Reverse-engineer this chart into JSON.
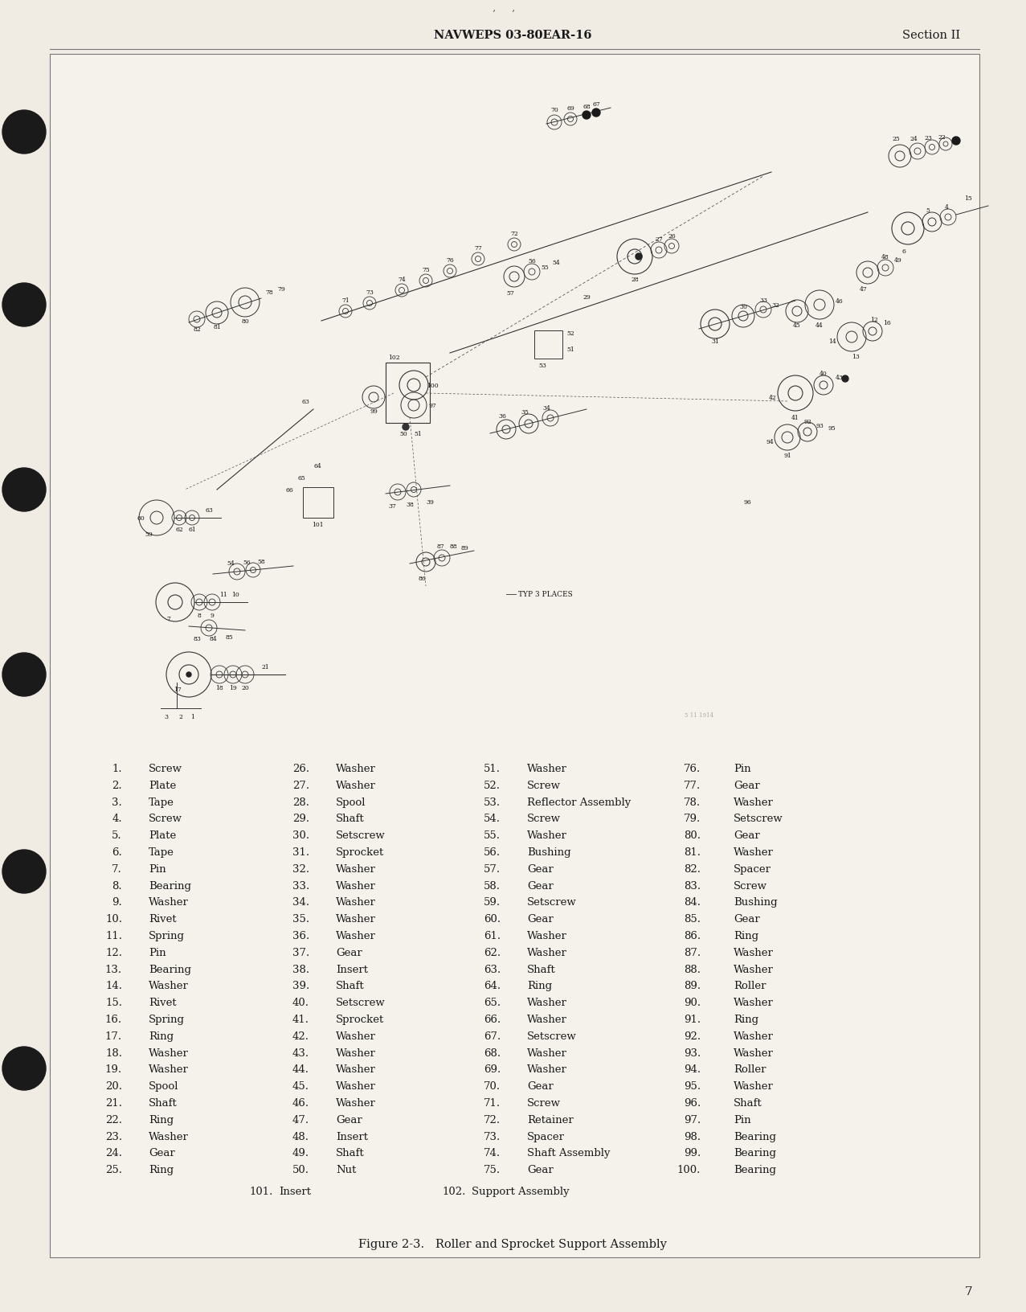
{
  "page_bg": "#f0ece4",
  "content_bg": "#f5f2ec",
  "header_left": "NAVWEPS 03-80EAR-16",
  "header_right": "Section II",
  "page_number": "7",
  "figure_caption": "Figure 2-3.   Roller and Sprocket Support Assembly",
  "parts_col1_nums": [
    "1.",
    "2.",
    "3.",
    "4.",
    "5.",
    "6.",
    "7.",
    "8.",
    "9.",
    "10.",
    "11.",
    "12.",
    "13.",
    "14.",
    "15.",
    "16.",
    "17.",
    "18.",
    "19.",
    "20.",
    "21.",
    "22.",
    "23.",
    "24.",
    "25."
  ],
  "parts_col1_names": [
    "Screw",
    "Plate",
    "Tape",
    "Screw",
    "Plate",
    "Tape",
    "Pin",
    "Bearing",
    "Washer",
    "Rivet",
    "Spring",
    "Pin",
    "Bearing",
    "Washer",
    "Rivet",
    "Spring",
    "Ring",
    "Washer",
    "Washer",
    "Spool",
    "Shaft",
    "Ring",
    "Washer",
    "Gear",
    "Ring"
  ],
  "parts_col2_nums": [
    "26.",
    "27.",
    "28.",
    "29.",
    "30.",
    "31.",
    "32.",
    "33.",
    "34.",
    "35.",
    "36.",
    "37.",
    "38.",
    "39.",
    "40.",
    "41.",
    "42.",
    "43.",
    "44.",
    "45.",
    "46.",
    "47.",
    "48.",
    "49.",
    "50."
  ],
  "parts_col2_names": [
    "Washer",
    "Washer",
    "Spool",
    "Shaft",
    "Setscrew",
    "Sprocket",
    "Washer",
    "Washer",
    "Washer",
    "Washer",
    "Washer",
    "Gear",
    "Insert",
    "Shaft",
    "Setscrew",
    "Sprocket",
    "Washer",
    "Washer",
    "Washer",
    "Washer",
    "Washer",
    "Gear",
    "Insert",
    "Shaft",
    "Nut"
  ],
  "parts_col3_nums": [
    "51.",
    "52.",
    "53.",
    "54.",
    "55.",
    "56.",
    "57.",
    "58.",
    "59.",
    "60.",
    "61.",
    "62.",
    "63.",
    "64.",
    "65.",
    "66.",
    "67.",
    "68.",
    "69.",
    "70.",
    "71.",
    "72.",
    "73.",
    "74.",
    "75."
  ],
  "parts_col3_names": [
    "Washer",
    "Screw",
    "Reflector Assembly",
    "Screw",
    "Washer",
    "Bushing",
    "Gear",
    "Gear",
    "Setscrew",
    "Gear",
    "Washer",
    "Washer",
    "Shaft",
    "Ring",
    "Washer",
    "Washer",
    "Setscrew",
    "Washer",
    "Washer",
    "Gear",
    "Screw",
    "Retainer",
    "Spacer",
    "Shaft Assembly",
    "Gear"
  ],
  "parts_col4_nums": [
    "76.",
    "77.",
    "78.",
    "79.",
    "80.",
    "81.",
    "82.",
    "83.",
    "84.",
    "85.",
    "86.",
    "87.",
    "88.",
    "89.",
    "90.",
    "91.",
    "92.",
    "93.",
    "94.",
    "95.",
    "96.",
    "97.",
    "98.",
    "99.",
    "100."
  ],
  "parts_col4_names": [
    "Pin",
    "Gear",
    "Washer",
    "Setscrew",
    "Gear",
    "Washer",
    "Spacer",
    "Screw",
    "Bushing",
    "Gear",
    "Ring",
    "Washer",
    "Washer",
    "Roller",
    "Washer",
    "Ring",
    "Washer",
    "Washer",
    "Roller",
    "Washer",
    "Shaft",
    "Pin",
    "Bearing",
    "Bearing",
    "Bearing"
  ],
  "footer_items": [
    "101.  Insert",
    "102.  Support Assembly"
  ],
  "text_color": "#1a1a1a",
  "line_color": "#333333",
  "border_color": "#777777"
}
